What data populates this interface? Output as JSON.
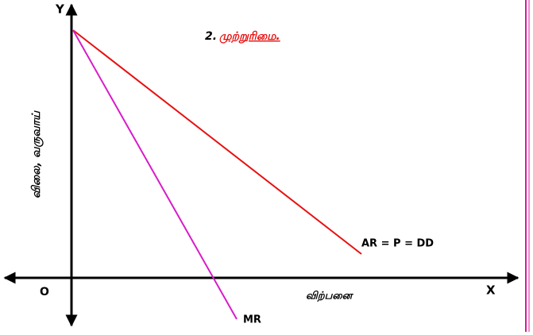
{
  "diagram": {
    "title_number": "2.",
    "title": "முற்றுரிமை.",
    "axes": {
      "y": "Y",
      "x": "X",
      "origin": "O"
    },
    "y_label": "விலை, வருவாய்",
    "x_label": "விற்பனை",
    "curves": [
      {
        "label": "AR = P = DD"
      },
      {
        "label": "MR"
      }
    ]
  }
}
